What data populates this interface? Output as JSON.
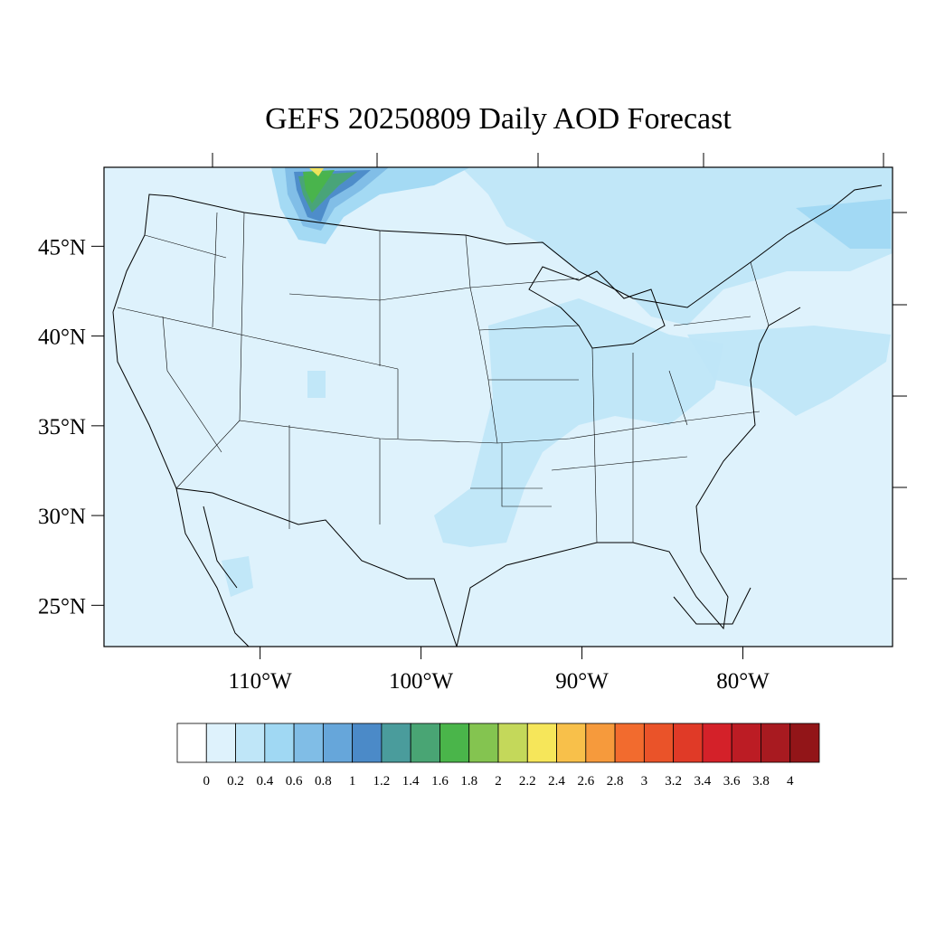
{
  "map": {
    "title": "GEFS 20250809 Daily AOD Forecast",
    "lon_range": [
      -119.7,
      -70.7
    ],
    "lat_range": [
      22.7,
      49.4
    ],
    "lat_ticks": [
      {
        "value": 45,
        "label": "45°N"
      },
      {
        "value": 40,
        "label": "40°N"
      },
      {
        "value": 35,
        "label": "35°N"
      },
      {
        "value": 30,
        "label": "30°N"
      },
      {
        "value": 25,
        "label": "25°N"
      }
    ],
    "lon_ticks": [
      {
        "value": -110,
        "label": "110°W"
      },
      {
        "value": -100,
        "label": "100°W"
      },
      {
        "value": -90,
        "label": "90°W"
      },
      {
        "value": -80,
        "label": "80°W"
      }
    ]
  },
  "colorbar": {
    "levels": [
      0,
      0.2,
      0.4,
      0.6,
      0.8,
      1,
      1.2,
      1.4,
      1.6,
      1.8,
      2,
      2.2,
      2.4,
      2.6,
      2.8,
      3,
      3.2,
      3.4,
      3.6,
      3.8,
      4
    ],
    "colors": [
      "#ffffff",
      "#def2fc",
      "#bfe6f8",
      "#a0d8f3",
      "#80bde6",
      "#66a6da",
      "#4b8ac8",
      "#4a9c9c",
      "#49a574",
      "#4ab54a",
      "#84c450",
      "#c4d85a",
      "#f6e65a",
      "#f8c04a",
      "#f69a3c",
      "#f26b2e",
      "#ea5329",
      "#e03a27",
      "#d42129",
      "#bc1c24",
      "#a81a20",
      "#921518"
    ]
  }
}
